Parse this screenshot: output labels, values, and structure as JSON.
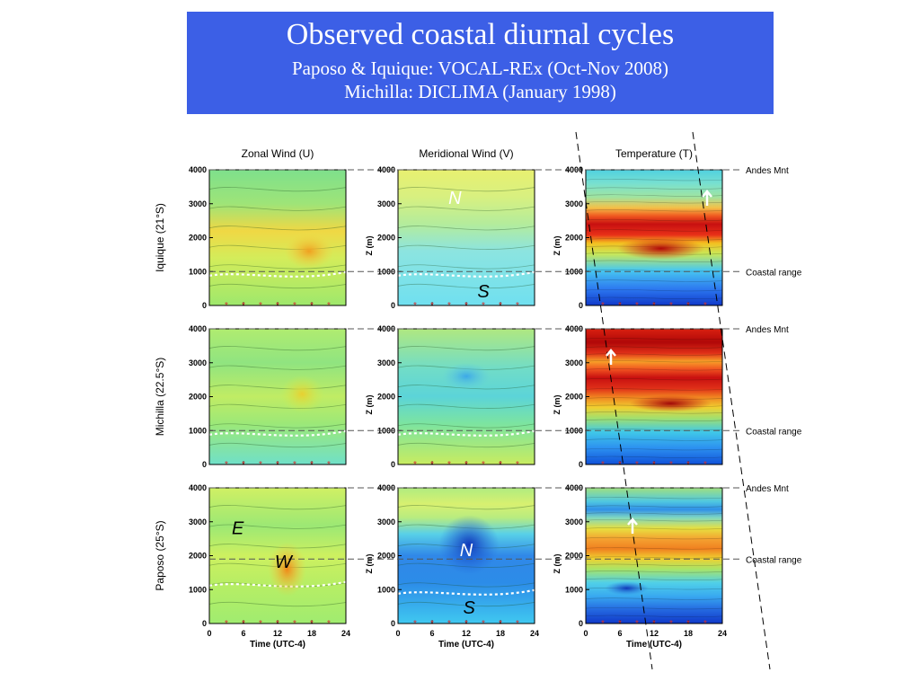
{
  "title": "Observed coastal diurnal cycles",
  "subtitle_1": "Paposo & Iquique: VOCAL-REx (Oct-Nov 2008)",
  "subtitle_2": "Michilla: DICLIMA (January 1998)",
  "chart_data": {
    "type": "heatmap",
    "columns": [
      "Zonal Wind (U)",
      "Meridional Wind (V)",
      "Temperature (T)"
    ],
    "rows": [
      "Iquique (21°S)",
      "Michilla (22.5°S)",
      "Paposo (25°S)"
    ],
    "xlabel": "Time (UTC-4)",
    "ylabel": "Z (m)",
    "x_ticks": [
      "0",
      "6",
      "12",
      "18",
      "24"
    ],
    "y_ticks": [
      "0",
      "1000",
      "2000",
      "3000",
      "4000"
    ],
    "xlim": [
      0,
      24
    ],
    "ylim": [
      0,
      4000
    ],
    "reference_labels": {
      "andes": "Andes Mnt",
      "coastal": "Coastal range"
    },
    "reference_heights": {
      "Iquique (21°S)": {
        "andes": 4000,
        "coastal": 1000
      },
      "Michilla (22.5°S)": {
        "andes": 4000,
        "coastal": 1000
      },
      "Paposo (25°S)": {
        "andes": 4000,
        "coastal": 1900
      }
    },
    "panel_annotations": [
      {
        "row": 0,
        "col": 1,
        "text": "N",
        "x": 10,
        "z": 3150,
        "color": "#ffffff"
      },
      {
        "row": 0,
        "col": 1,
        "text": "S",
        "x": 15,
        "z": 400,
        "color": "#000000"
      },
      {
        "row": 2,
        "col": 0,
        "text": "E",
        "x": 5,
        "z": 2800,
        "color": "#000000"
      },
      {
        "row": 2,
        "col": 0,
        "text": "W",
        "x": 13,
        "z": 1800,
        "color": "#000000"
      },
      {
        "row": 2,
        "col": 1,
        "text": "N",
        "x": 12,
        "z": 2150,
        "color": "#ffffff"
      },
      {
        "row": 2,
        "col": 1,
        "text": "S",
        "x": 12.5,
        "z": 450,
        "color": "#000000"
      }
    ],
    "sounding_hours": [
      3,
      6,
      9,
      12,
      15,
      18,
      21
    ]
  }
}
